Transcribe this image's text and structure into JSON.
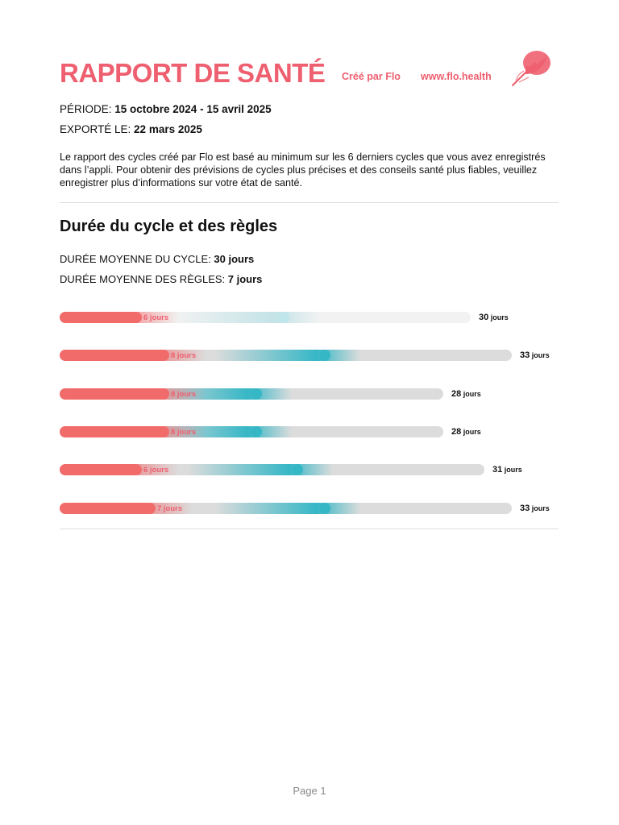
{
  "header": {
    "title": "RAPPORT DE SANTÉ",
    "created_by": "Créé par Flo",
    "website": "www.flo.health",
    "logo_icon": "flo-feather-logo-icon",
    "accent_color": "#ee5f6f"
  },
  "meta": {
    "period_label": "PÉRIODE: ",
    "period_value": "15 octobre 2024 - 15 avril 2025",
    "exported_label": "EXPORTÉ LE: ",
    "exported_value": "22 mars 2025"
  },
  "intro": "Le rapport des cycles créé par Flo est basé au minimum sur les 6 derniers cycles que vous avez enregistrés dans l’appli. Pour obtenir des prévisions de cycles plus précises et des conseils santé plus fiables, veuillez enregistrer plus d’informations sur votre état de santé.",
  "section": {
    "title": "Durée du cycle et des règles",
    "avg_cycle_label": "DURÉE MOYENNE DU CYCLE: ",
    "avg_cycle_value": "30 jours",
    "avg_period_label": "DURÉE MOYENNE DES RÈGLES: ",
    "avg_period_value": "7 jours"
  },
  "chart_data": {
    "type": "bar",
    "unit": "jours",
    "colors": {
      "period": "#f26b6b",
      "ovulation": "#36b7c6",
      "track": "#dcdcdc"
    },
    "cycles": [
      {
        "period_days": 6,
        "period_label": "6 jours",
        "cycle_days": 30,
        "cycle_label": "30",
        "ovulation_day": 16,
        "faded": true
      },
      {
        "period_days": 8,
        "period_label": "8 jours",
        "cycle_days": 33,
        "cycle_label": "33",
        "ovulation_day": 19,
        "faded": false
      },
      {
        "period_days": 8,
        "period_label": "8 jours",
        "cycle_days": 28,
        "cycle_label": "28",
        "ovulation_day": 14,
        "faded": false
      },
      {
        "period_days": 8,
        "period_label": "8 jours",
        "cycle_days": 28,
        "cycle_label": "28",
        "ovulation_day": 14,
        "faded": false
      },
      {
        "period_days": 6,
        "period_label": "6 jours",
        "cycle_days": 31,
        "cycle_label": "31",
        "ovulation_day": 17,
        "faded": false
      },
      {
        "period_days": 7,
        "period_label": "7 jours",
        "cycle_days": 33,
        "cycle_label": "33",
        "ovulation_day": 19,
        "faded": false
      }
    ]
  },
  "footer": {
    "page": "Page 1"
  }
}
